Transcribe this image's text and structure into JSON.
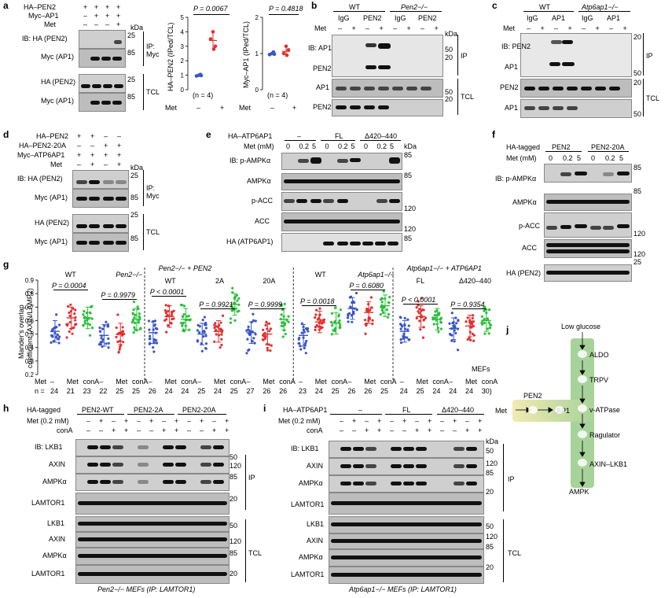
{
  "panel_letters": [
    "a",
    "b",
    "c",
    "d",
    "e",
    "f",
    "g",
    "h",
    "i",
    "j"
  ],
  "a": {
    "conditions": [
      "HA–PEN2",
      "Myc–AP1",
      "Met"
    ],
    "signs": [
      [
        "+",
        "+",
        "+",
        "+"
      ],
      [
        "–",
        "+",
        "+",
        "+"
      ],
      [
        "–",
        "–",
        "–",
        "+"
      ]
    ],
    "blots": [
      "IB: HA (PEN2)",
      "Myc (AP1)",
      "HA (PEN2)",
      "Myc (AP1)"
    ],
    "kda": [
      "kDa",
      "25",
      "85",
      "25",
      "85"
    ],
    "groups": [
      "IP:",
      "Myc",
      "TCL"
    ],
    "chart1": {
      "p": "P = 0.0067",
      "ylabel": "HA–PEN2 (IPed/TCL)",
      "yticks": [
        "0",
        "1",
        "2",
        "3",
        "4",
        "5"
      ],
      "n": "(n = 4)"
    },
    "chart2": {
      "p": "P = 0.4818",
      "ylabel": "Myc–AP1 (IPed/TCL)",
      "yticks": [
        "0",
        "1",
        "2"
      ],
      "n": "(n = 4)"
    },
    "met_label": "Met",
    "met_signs": [
      "–",
      "+"
    ]
  },
  "b": {
    "genotypes": [
      "WT",
      "Pen2−/−"
    ],
    "ab": [
      "IgG",
      "PEN2",
      "IgG",
      "PEN2"
    ],
    "met": "Met",
    "met_signs": [
      "–",
      "+",
      "–",
      "+",
      "–",
      "+",
      "–",
      "+"
    ],
    "blots": [
      "IB: AP1",
      "PEN2",
      "AP1",
      "PEN2"
    ],
    "kda": [
      "kDa",
      "50",
      "20",
      "50",
      "20"
    ],
    "groups": [
      "IP",
      "TCL"
    ]
  },
  "c": {
    "genotypes": [
      "WT",
      "Atp6ap1−/−"
    ],
    "ab": [
      "IgG",
      "AP1",
      "IgG",
      "AP1"
    ],
    "met": "Met",
    "met_signs": [
      "–",
      "+",
      "–",
      "+",
      "–",
      "+",
      "–",
      "+"
    ],
    "blots": [
      "IB: PEN2",
      "AP1",
      "PEN2",
      "AP1"
    ],
    "kda": [
      "20",
      "50",
      "20",
      "50"
    ],
    "groups": [
      "IP",
      "TCL"
    ]
  },
  "d": {
    "conditions": [
      "HA–PEN2",
      "HA–PEN2-20A",
      "Myc–ATP6AP1",
      "Met"
    ],
    "signs": [
      [
        "+",
        "+",
        "–",
        "–"
      ],
      [
        "–",
        "–",
        "+",
        "+"
      ],
      [
        "+",
        "+",
        "+",
        "+"
      ],
      [
        "–",
        "+",
        "–",
        "+"
      ]
    ],
    "blots": [
      "IB: HA (PEN2)",
      "Myc (AP1)",
      "HA (PEN2)",
      "Myc (AP1)"
    ],
    "kda": [
      "kDa",
      "25",
      "85",
      "25",
      "85"
    ],
    "groups": [
      "IP:",
      "Myc",
      "TCL"
    ]
  },
  "e": {
    "construct_label": "HA–ATP6AP1",
    "constructs": [
      "–",
      "FL",
      "Δ420–440"
    ],
    "met": "Met (mM)",
    "doses": [
      "0",
      "0.2",
      "5",
      "0",
      "0.2",
      "5",
      "0",
      "0.2",
      "5"
    ],
    "blots": [
      "IB: p-AMPKα",
      "AMPKα",
      "p-ACC",
      "ACC",
      "HA (ATP6AP1)"
    ],
    "kda": [
      "kDa",
      "85",
      "85",
      "120",
      "120",
      "85"
    ]
  },
  "f": {
    "label": "HA-tagged",
    "constructs": [
      "PEN2",
      "PEN2-20A"
    ],
    "met": "Met (mM)",
    "doses": [
      "0",
      "0.2",
      "5",
      "0",
      "0.2",
      "5"
    ],
    "blots": [
      "IB: p-AMPKα",
      "AMPKα",
      "p-ACC",
      "ACC",
      "HA (PEN2)"
    ],
    "kda": [
      "85",
      "85",
      "120",
      "120",
      "25"
    ]
  },
  "g": {
    "ylabel1": "Mander's overlap",
    "ylabel2": "coefficient (AXIN/LAMP2)",
    "yticks": [
      "0.2",
      "0.3",
      "0.4",
      "0.5",
      "0.6",
      "0.7",
      "0.8",
      "0.9"
    ],
    "headers": [
      "WT",
      "Pen2−/−",
      "Pen2−/− + PEN2",
      "WT",
      "2A",
      "20A",
      "WT",
      "Atp6ap1−/−",
      "Atp6ap1−/− + ATP6AP1",
      "FL",
      "Δ420–440"
    ],
    "pvalues": [
      "P = 0.0004",
      "P = 0.9979",
      "P < 0.0001",
      "P = 0.9921",
      "P = 0.9999",
      "P = 0.0018",
      "P = 0.6080",
      "P < 0.0001",
      "P = 0.9354"
    ],
    "met_row": [
      "Met",
      "–",
      "Met",
      "conA",
      "–",
      "Met",
      "conA",
      "–",
      "Met",
      "conA",
      "–",
      "Met",
      "conA",
      "–",
      "Met",
      "conA",
      "–",
      "Met",
      "conA",
      "–",
      "Met",
      "conA",
      "–",
      "Met",
      "conA",
      "–",
      "Met",
      "conA"
    ],
    "n_row": [
      "n =",
      "24",
      "21",
      "23",
      "22",
      "25",
      "25",
      "26",
      "24",
      "24",
      "25",
      "24",
      "25",
      "27",
      "26",
      "26",
      "23",
      "24",
      "25",
      "26",
      "26",
      "25",
      "24",
      "25",
      "24",
      "24",
      "24",
      "30)"
    ],
    "mefs": "MEFs"
  },
  "chart_data": {
    "type": "scatter",
    "title": "",
    "ylabel": "Mander's overlap coefficient (AXIN/LAMP2)",
    "ylim": [
      0.2,
      0.9
    ],
    "groups": [
      {
        "name": "WT –",
        "mean": 0.52,
        "color": "#3a55c8"
      },
      {
        "name": "WT Met",
        "mean": 0.62,
        "color": "#e23030"
      },
      {
        "name": "WT conA",
        "mean": 0.62,
        "color": "#2bbf3a"
      },
      {
        "name": "Pen2 –",
        "mean": 0.49,
        "color": "#3a55c8"
      },
      {
        "name": "Pen2 Met",
        "mean": 0.5,
        "color": "#e23030"
      },
      {
        "name": "Pen2 conA",
        "mean": 0.61,
        "color": "#2bbf3a"
      },
      {
        "name": "+PEN2 WT –",
        "mean": 0.51,
        "color": "#3a55c8"
      },
      {
        "name": "+PEN2 WT Met",
        "mean": 0.63,
        "color": "#e23030"
      },
      {
        "name": "+PEN2 WT conA",
        "mean": 0.61,
        "color": "#2bbf3a"
      },
      {
        "name": "+PEN2 2A –",
        "mean": 0.5,
        "color": "#3a55c8"
      },
      {
        "name": "+PEN2 2A Met",
        "mean": 0.52,
        "color": "#e23030"
      },
      {
        "name": "+PEN2 2A conA",
        "mean": 0.72,
        "color": "#2bbf3a"
      },
      {
        "name": "+PEN2 20A –",
        "mean": 0.51,
        "color": "#3a55c8"
      },
      {
        "name": "+PEN2 20A Met",
        "mean": 0.5,
        "color": "#e23030"
      },
      {
        "name": "+PEN2 20A conA",
        "mean": 0.61,
        "color": "#2bbf3a"
      },
      {
        "name": "WT – (2)",
        "mean": 0.49,
        "color": "#3a55c8"
      },
      {
        "name": "WT Met (2)",
        "mean": 0.59,
        "color": "#e23030"
      },
      {
        "name": "WT conA (2)",
        "mean": 0.58,
        "color": "#2bbf3a"
      },
      {
        "name": "Atp6ap1 –",
        "mean": 0.69,
        "color": "#3a55c8"
      },
      {
        "name": "Atp6ap1 Met",
        "mean": 0.66,
        "color": "#e23030"
      },
      {
        "name": "Atp6ap1 conA",
        "mean": 0.71,
        "color": "#2bbf3a"
      },
      {
        "name": "+AP1 FL –",
        "mean": 0.52,
        "color": "#3a55c8"
      },
      {
        "name": "+AP1 FL Met",
        "mean": 0.63,
        "color": "#e23030"
      },
      {
        "name": "+AP1 FL conA",
        "mean": 0.61,
        "color": "#2bbf3a"
      },
      {
        "name": "+AP1 Δ –",
        "mean": 0.54,
        "color": "#3a55c8"
      },
      {
        "name": "+AP1 Δ Met",
        "mean": 0.56,
        "color": "#e23030"
      },
      {
        "name": "+AP1 Δ conA",
        "mean": 0.6,
        "color": "#2bbf3a"
      }
    ]
  },
  "h": {
    "label": "HA-tagged",
    "constructs": [
      "PEN2-WT",
      "PEN2-2A",
      "PEN2-20A"
    ],
    "met": "Met (0.2 mM)",
    "conA": "conA",
    "met_signs": [
      "–",
      "+",
      "–",
      "+",
      "–",
      "+",
      "–",
      "+",
      "–",
      "+",
      "–",
      "+"
    ],
    "conA_signs": [
      "–",
      "–",
      "+",
      "+",
      "–",
      "–",
      "+",
      "+",
      "–",
      "–",
      "+",
      "+"
    ],
    "blots": [
      "IB: LKB1",
      "AXIN",
      "AMPKα",
      "LAMTOR1",
      "LKB1",
      "AXIN",
      "AMPKα",
      "LAMTOR1"
    ],
    "kda": [
      "50",
      "120",
      "85",
      "20",
      "50",
      "120",
      "85",
      "20"
    ],
    "groups": [
      "IP",
      "TCL"
    ],
    "caption": "Pen2−/− MEFs (IP: LAMTOR1)"
  },
  "i": {
    "construct_label": "HA–ATP6AP1",
    "constructs": [
      "–",
      "FL",
      "Δ420–440"
    ],
    "met": "Met (0.2 mM)",
    "conA": "conA",
    "met_signs": [
      "–",
      "+",
      "–",
      "+",
      "–",
      "+",
      "–",
      "+",
      "–",
      "+",
      "–",
      "+"
    ],
    "conA_signs": [
      "–",
      "–",
      "+",
      "+",
      "–",
      "–",
      "+",
      "+",
      "–",
      "–",
      "+",
      "+"
    ],
    "blots": [
      "IB: LKB1",
      "AXIN",
      "AMPKα",
      "LAMTOR1",
      "LKB1",
      "AXIN",
      "AMPKα",
      "LAMTOR1"
    ],
    "kda": [
      "kDa",
      "50",
      "120",
      "85",
      "20",
      "50",
      "120",
      "85",
      "20"
    ],
    "groups": [
      "IP",
      "TCL"
    ],
    "caption": "Atp6ap1−/− MEFs (IP: LAMTOR1)"
  },
  "j": {
    "top": "Low glucose",
    "nodes": [
      "ALDO",
      "TRPV",
      "v-ATPase",
      "Ragulator",
      "AXIN–LKB1"
    ],
    "bottom": "AMPK",
    "met": "Met",
    "pen2": "PEN2",
    "ap1": "AP1",
    "colors": {
      "vertical": "#a7d39a",
      "horizontal": "#f2eab2"
    }
  }
}
